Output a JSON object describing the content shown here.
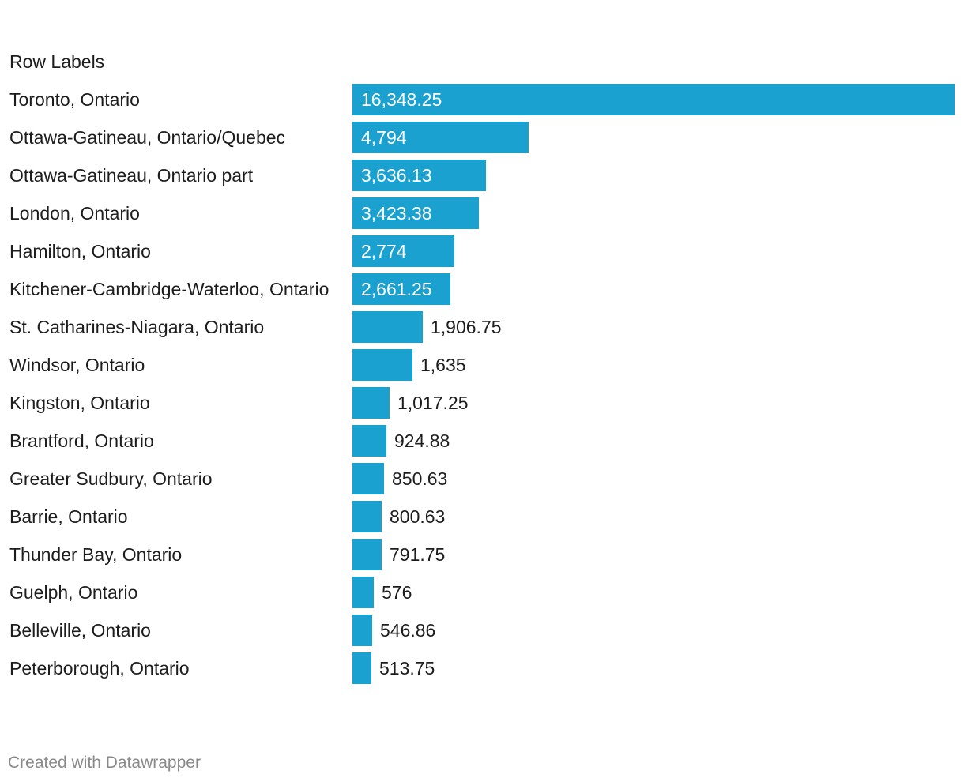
{
  "chart_data": {
    "type": "bar",
    "orientation": "horizontal",
    "column_header": "Row Labels",
    "categories": [
      "Toronto, Ontario",
      "Ottawa-Gatineau, Ontario/Quebec",
      "Ottawa-Gatineau, Ontario part",
      "London, Ontario",
      "Hamilton, Ontario",
      "Kitchener-Cambridge-Waterloo, Ontario",
      "St. Catharines-Niagara, Ontario",
      "Windsor, Ontario",
      "Kingston, Ontario",
      "Brantford, Ontario",
      "Greater Sudbury, Ontario",
      "Barrie, Ontario",
      "Thunder Bay, Ontario",
      "Guelph, Ontario",
      "Belleville, Ontario",
      "Peterborough, Ontario"
    ],
    "values": [
      16348.25,
      4794,
      3636.13,
      3423.38,
      2774,
      2661.25,
      1906.75,
      1635,
      1017.25,
      924.88,
      850.63,
      800.63,
      791.75,
      576,
      546.86,
      513.75
    ],
    "value_labels": [
      "16,348.25",
      "4,794",
      "3,636.13",
      "3,423.38",
      "2,774",
      "2,661.25",
      "1,906.75",
      "1,635",
      "1,017.25",
      "924.88",
      "850.63",
      "800.63",
      "791.75",
      "576",
      "546.86",
      "513.75"
    ],
    "xlim": [
      0,
      16348.25
    ],
    "bar_color": "#1ba1cf",
    "grid": false
  },
  "footer": {
    "credit": "Created with Datawrapper"
  }
}
